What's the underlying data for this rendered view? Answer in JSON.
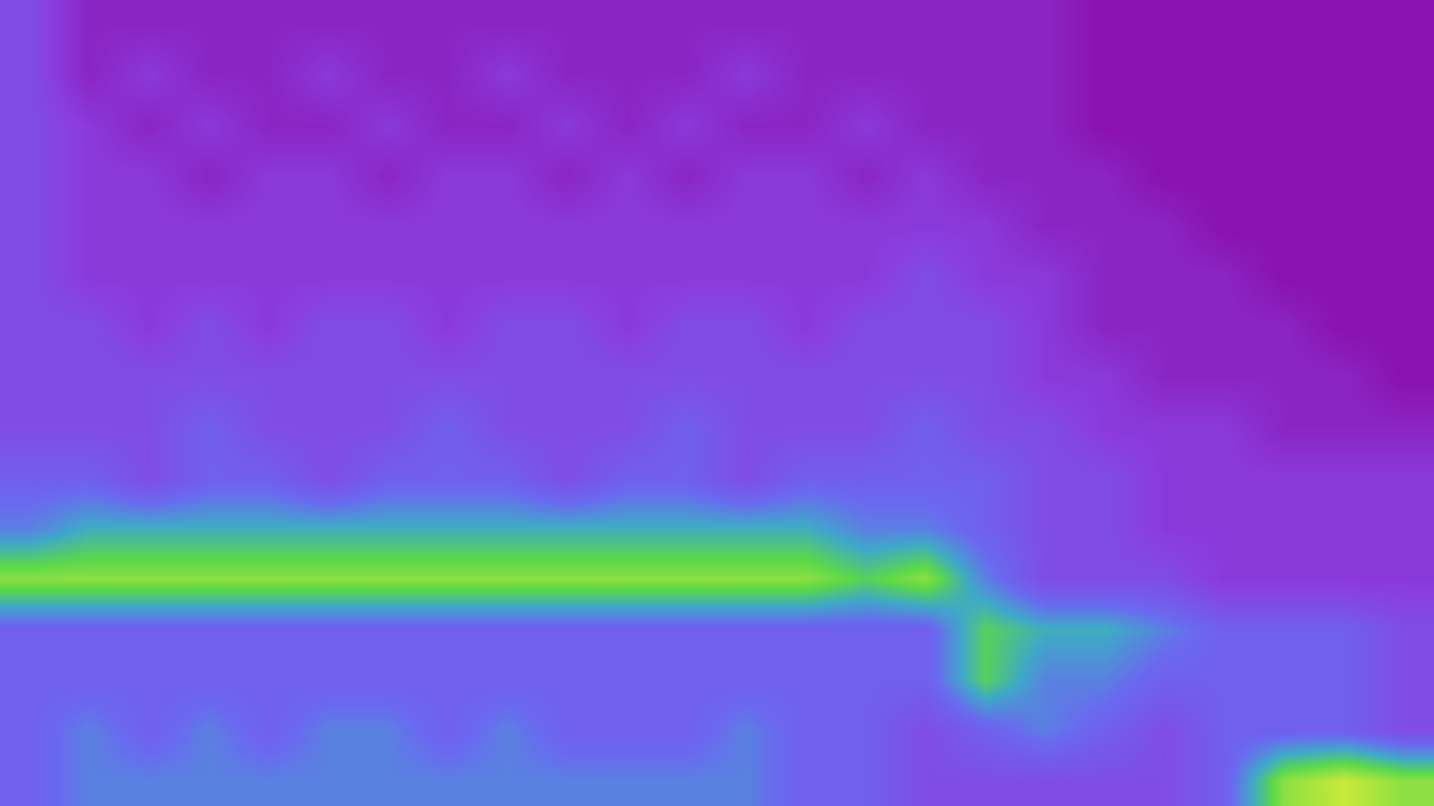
{
  "chart_data": {
    "type": "heatmap",
    "tick_labels": false,
    "cells": [
      [
        3,
        1,
        1,
        1,
        1,
        1,
        1,
        1,
        1,
        1,
        1,
        1,
        1,
        1,
        1,
        1,
        1,
        1,
        0,
        0,
        0,
        0,
        0,
        0
      ],
      [
        3,
        1,
        2,
        1,
        1,
        2,
        1,
        1,
        2,
        1,
        1,
        1,
        2,
        1,
        1,
        1,
        1,
        1,
        0,
        0,
        0,
        0,
        0,
        0
      ],
      [
        3,
        2,
        1,
        2,
        1,
        1,
        2,
        1,
        1,
        2,
        1,
        2,
        1,
        1,
        2,
        1,
        1,
        1,
        0,
        0,
        0,
        0,
        0,
        0
      ],
      [
        3,
        2,
        2,
        1,
        2,
        2,
        1,
        2,
        2,
        1,
        2,
        1,
        2,
        2,
        1,
        2,
        1,
        1,
        1,
        0,
        0,
        0,
        0,
        0
      ],
      [
        3,
        2,
        2,
        2,
        2,
        2,
        2,
        2,
        2,
        2,
        2,
        2,
        2,
        2,
        2,
        2,
        2,
        1,
        1,
        1,
        0,
        0,
        0,
        0
      ],
      [
        3,
        2,
        2,
        2,
        2,
        2,
        2,
        2,
        2,
        2,
        2,
        2,
        2,
        2,
        2,
        3,
        2,
        2,
        1,
        1,
        1,
        0,
        0,
        0
      ],
      [
        3,
        3,
        2,
        3,
        2,
        3,
        3,
        2,
        3,
        3,
        2,
        3,
        3,
        2,
        3,
        3,
        3,
        2,
        1,
        1,
        1,
        1,
        0,
        0
      ],
      [
        3,
        3,
        3,
        3,
        3,
        3,
        3,
        3,
        3,
        3,
        3,
        3,
        3,
        3,
        3,
        3,
        3,
        2,
        2,
        1,
        1,
        1,
        1,
        0
      ],
      [
        3,
        3,
        3,
        4,
        3,
        3,
        3,
        4,
        3,
        3,
        3,
        4,
        3,
        3,
        3,
        4,
        3,
        3,
        2,
        2,
        2,
        1,
        1,
        1
      ],
      [
        4,
        4,
        3,
        4,
        4,
        3,
        4,
        4,
        4,
        3,
        4,
        4,
        3,
        4,
        4,
        4,
        4,
        3,
        3,
        2,
        2,
        2,
        2,
        2
      ],
      [
        5,
        6,
        6,
        6,
        6,
        6,
        6,
        6,
        6,
        6,
        6,
        6,
        6,
        6,
        5,
        5,
        4,
        3,
        3,
        2,
        2,
        2,
        2,
        2
      ],
      [
        8,
        8,
        8,
        8,
        8,
        8,
        8,
        8,
        8,
        8,
        8,
        8,
        8,
        8,
        7,
        8,
        5,
        3,
        3,
        3,
        2,
        2,
        2,
        2
      ],
      [
        4,
        4,
        4,
        4,
        4,
        4,
        4,
        4,
        4,
        4,
        4,
        4,
        4,
        4,
        4,
        4,
        7,
        6,
        6,
        5,
        4,
        4,
        4,
        3
      ],
      [
        4,
        4,
        4,
        4,
        4,
        4,
        4,
        4,
        4,
        4,
        4,
        4,
        4,
        4,
        4,
        4,
        7,
        5,
        5,
        4,
        4,
        4,
        4,
        3
      ],
      [
        4,
        5,
        4,
        5,
        4,
        5,
        5,
        4,
        5,
        4,
        4,
        4,
        5,
        4,
        4,
        3,
        4,
        5,
        4,
        3,
        4,
        4,
        4,
        3
      ],
      [
        4,
        5,
        5,
        5,
        5,
        5,
        5,
        5,
        5,
        5,
        5,
        5,
        5,
        4,
        4,
        3,
        3,
        3,
        3,
        3,
        4,
        8,
        9,
        8
      ]
    ]
  }
}
